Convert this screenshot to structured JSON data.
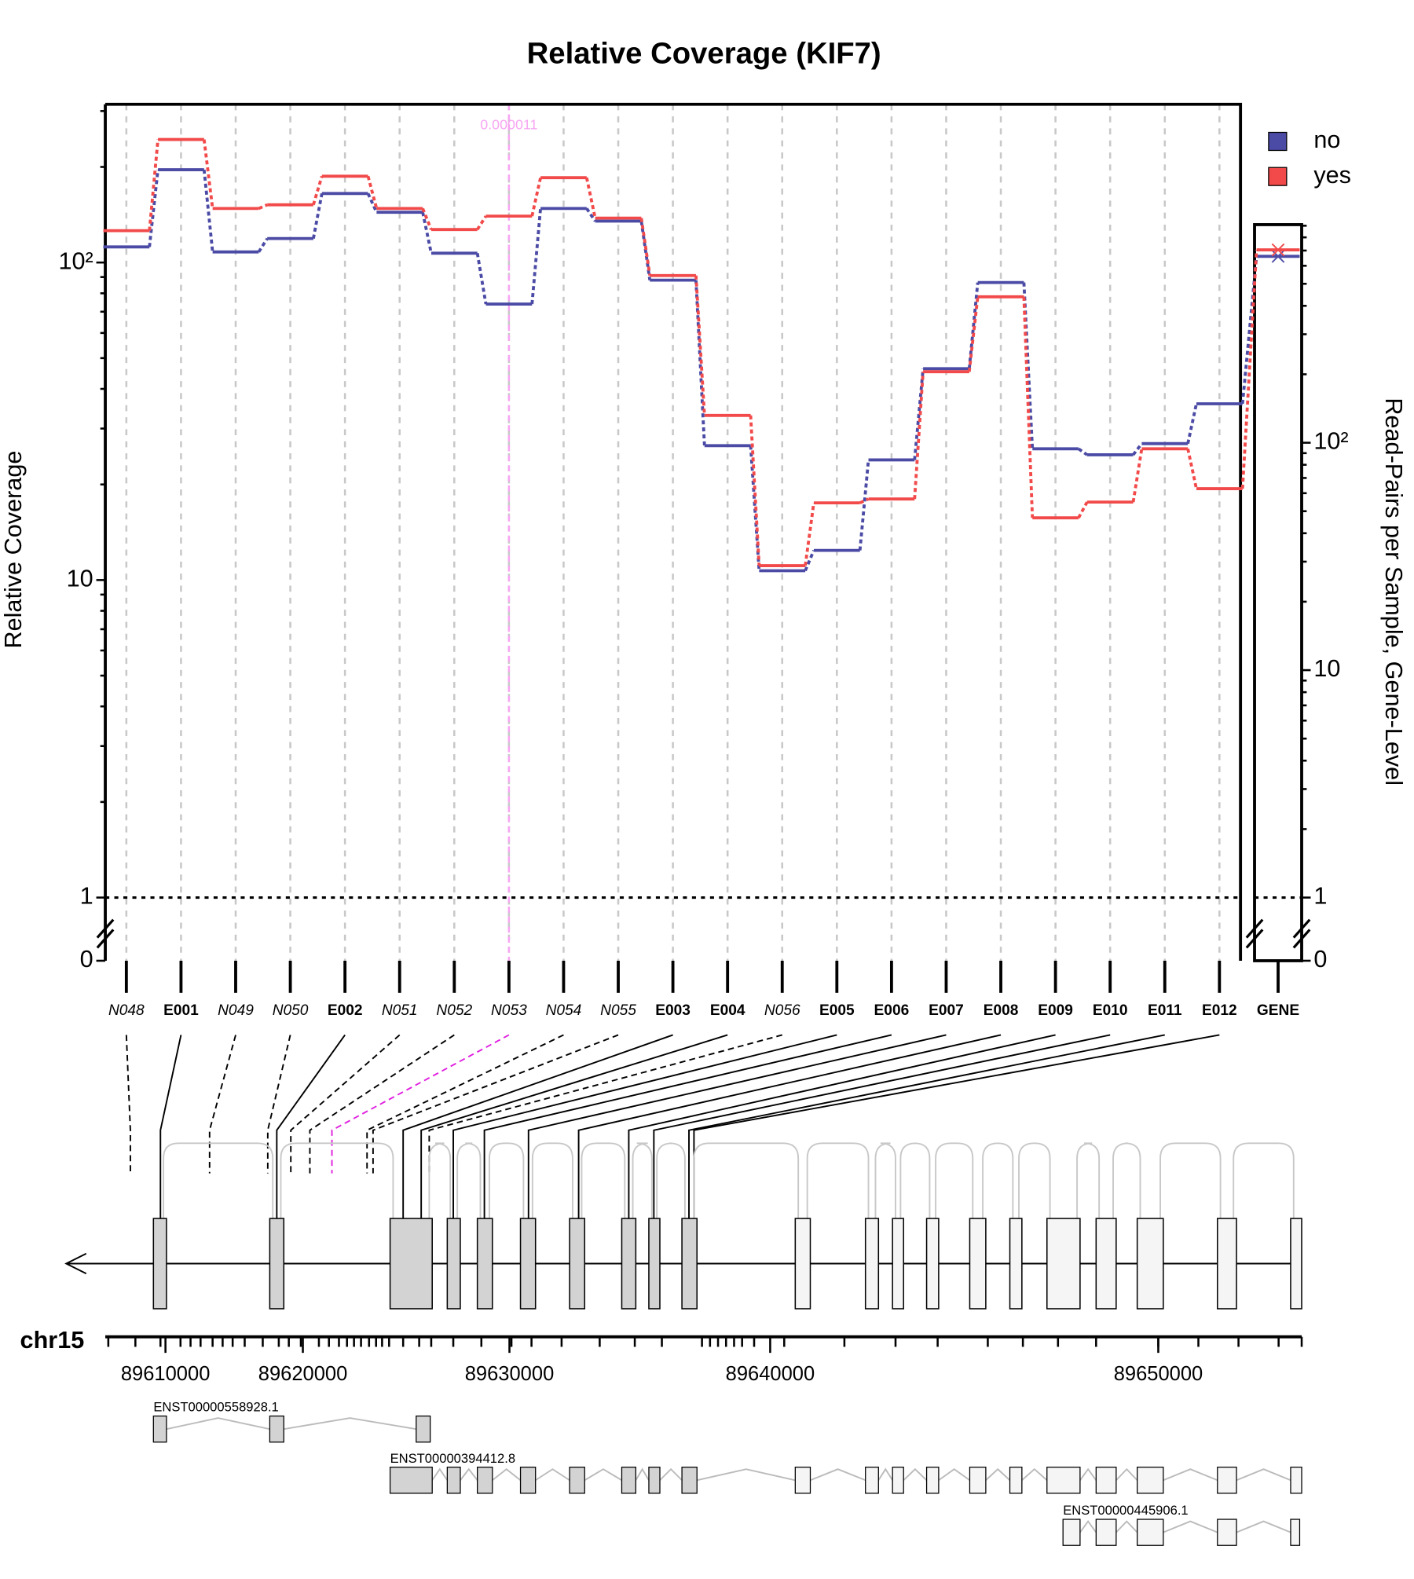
{
  "chart_data": {
    "type": "line",
    "title": "Relative Coverage (KIF7)",
    "ylabel": "Relative Coverage",
    "y2label": "Read-Pairs per Sample, Gene-Level",
    "categories": [
      "N048",
      "E001",
      "N049",
      "N050",
      "E002",
      "N051",
      "N052",
      "N053",
      "N054",
      "N055",
      "E003",
      "E004",
      "N056",
      "E005",
      "E006",
      "E007",
      "E008",
      "E009",
      "E010",
      "E011",
      "E012"
    ],
    "gene_category": "GENE",
    "series": [
      {
        "name": "no",
        "color": "#4b4ba6",
        "values": [
          112,
          196,
          108,
          119,
          165,
          144,
          107,
          74,
          148,
          135,
          88,
          26.5,
          10.7,
          12.4,
          23.9,
          46.3,
          86.5,
          25.9,
          24.8,
          26.9,
          35.9
        ],
        "gene_value": 660
      },
      {
        "name": "yes",
        "color": "#f24a4a",
        "values": [
          126,
          244,
          148,
          152,
          187,
          148,
          127,
          140,
          185,
          138,
          91,
          33,
          11.1,
          17.5,
          18,
          45.3,
          78,
          15.7,
          17.6,
          25.9,
          19.4
        ],
        "gene_value": 705
      }
    ],
    "ylim": [
      0,
      315
    ],
    "yticks": [
      0,
      1,
      10,
      {
        "value": 100,
        "label": "10²"
      }
    ],
    "y2lim": [
      0,
      910
    ],
    "y2ticks": [
      0,
      1,
      10,
      {
        "value": 100,
        "label": "10²"
      }
    ],
    "log_scale": true,
    "grid": true,
    "legend": "top-right",
    "reference_line": 1,
    "highlight": {
      "category": "N053",
      "label": "0.000011"
    }
  },
  "gene_model": {
    "chromosome": "chr15",
    "coordinate_ticks": [
      89610000,
      89620000,
      89630000,
      89640000,
      89650000
    ],
    "transcripts": [
      "ENST00000558928.1",
      "ENST00000394412.8",
      "ENST00000445906.1"
    ]
  }
}
